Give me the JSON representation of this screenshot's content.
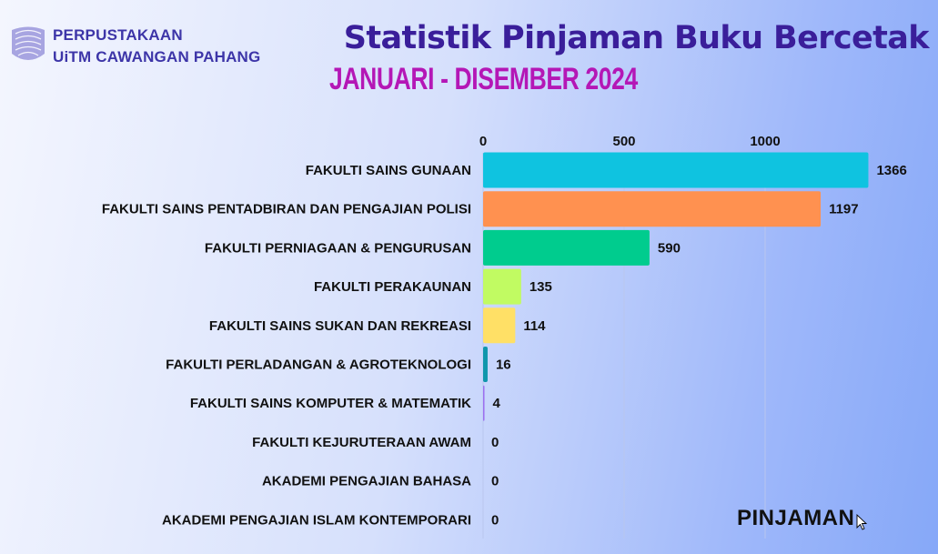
{
  "header": {
    "org_line1": "PERPUSTAKAAN",
    "org_line2": "UiTM CAWANGAN PAHANG",
    "title": "Statistik Pinjaman Buku Bercetak",
    "subtitle": "JANUARI - DISEMBER 2024"
  },
  "icons": {
    "logo": "library-logo-icon"
  },
  "colors": {
    "title": "#3a1e9a",
    "subtitle": "#b417b6",
    "org": "#3d35a8"
  },
  "chart_data": {
    "type": "bar",
    "orientation": "horizontal",
    "categories": [
      "FAKULTI SAINS GUNAAN",
      "FAKULTI SAINS PENTADBIRAN DAN PENGAJIAN POLISI",
      "FAKULTI PERNIAGAAN & PENGURUSAN",
      "FAKULTI PERAKAUNAN",
      "FAKULTI SAINS SUKAN DAN REKREASI",
      "FAKULTI PERLADANGAN & AGROTEKNOLOGI",
      "FAKULTI SAINS KOMPUTER & MATEMATIK",
      "FAKULTI KEJURUTERAAN AWAM",
      "AKADEMI PENGAJIAN BAHASA",
      "AKADEMI PENGAJIAN ISLAM KONTEMPORARI"
    ],
    "values": [
      1366,
      1197,
      590,
      135,
      114,
      16,
      4,
      0,
      0,
      0
    ],
    "value_labels": [
      "1366",
      "1197",
      "590",
      "135",
      "114",
      "16",
      "4",
      "0",
      "0",
      "0"
    ],
    "bar_colors": [
      "#0fc3e0",
      "#ff9150",
      "#00cc8e",
      "#c1fb62",
      "#ffe066",
      "#0f96ac",
      "#9b6ff0",
      "#5a76c9",
      "#5a76c9",
      "#5a76c9"
    ],
    "x_ticks": [
      0,
      500,
      1000
    ],
    "x_tick_labels": [
      "0",
      "500",
      "1000"
    ],
    "xlim": [
      0,
      1480
    ],
    "axis_position": "top",
    "grid": true,
    "legend_label": "PINJAMAN",
    "legend_position": "bottom-right"
  }
}
